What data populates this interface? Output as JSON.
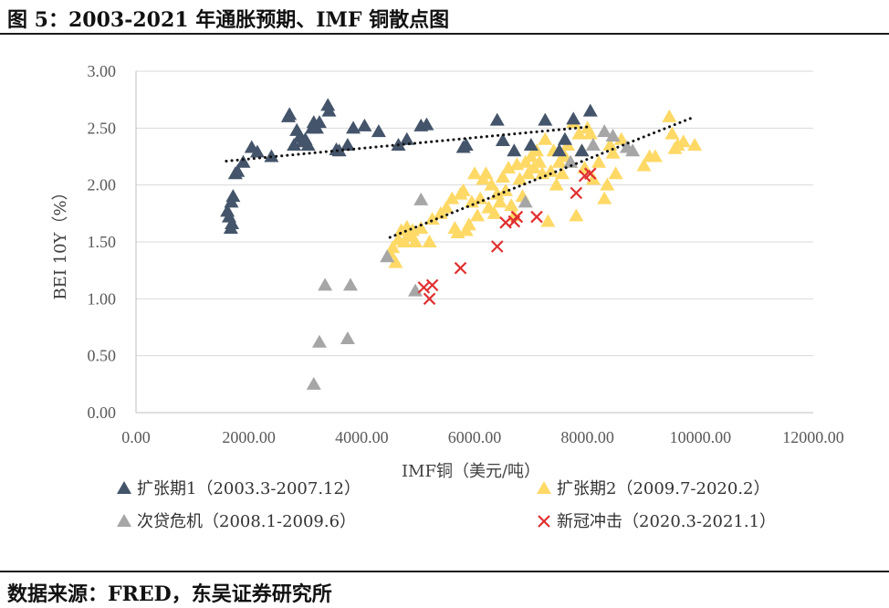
{
  "header": {
    "title": "图 5：2003-2021 年通胀预期、IMF 铜散点图"
  },
  "footer": {
    "source": "数据来源：FRED，东吴证券研究所"
  },
  "chart_data": {
    "type": "scatter",
    "title": "",
    "xlabel": "IMF铜（美元/吨）",
    "ylabel": "BEI 10Y（%）",
    "xlim": [
      0,
      12000
    ],
    "ylim": [
      0,
      3
    ],
    "x_ticks": [
      "0.00",
      "2000.00",
      "4000.00",
      "6000.00",
      "8000.00",
      "10000.00",
      "12000.00"
    ],
    "y_ticks": [
      "0.00",
      "0.50",
      "1.00",
      "1.50",
      "2.00",
      "2.50",
      "3.00"
    ],
    "grid": "horizontal",
    "legend_position": "bottom",
    "series": [
      {
        "name": "扩张期1（2003.3-2007.12）",
        "marker": "triangle",
        "color": "#44546a",
        "points": [
          [
            1620,
            1.77
          ],
          [
            1650,
            1.72
          ],
          [
            1680,
            1.62
          ],
          [
            1700,
            1.66
          ],
          [
            1690,
            1.85
          ],
          [
            1720,
            1.9
          ],
          [
            1760,
            2.1
          ],
          [
            1800,
            2.12
          ],
          [
            1900,
            2.2
          ],
          [
            2050,
            2.33
          ],
          [
            2150,
            2.29
          ],
          [
            2400,
            2.25
          ],
          [
            2700,
            2.6
          ],
          [
            2720,
            2.62
          ],
          [
            2800,
            2.35
          ],
          [
            2850,
            2.48
          ],
          [
            2900,
            2.42
          ],
          [
            2950,
            2.38
          ],
          [
            3000,
            2.4
          ],
          [
            3050,
            2.35
          ],
          [
            3120,
            2.5
          ],
          [
            3150,
            2.55
          ],
          [
            3200,
            2.5
          ],
          [
            3250,
            2.55
          ],
          [
            3400,
            2.7
          ],
          [
            3420,
            2.65
          ],
          [
            3550,
            2.31
          ],
          [
            3600,
            2.3
          ],
          [
            3750,
            2.35
          ],
          [
            3850,
            2.5
          ],
          [
            4050,
            2.52
          ],
          [
            4300,
            2.47
          ],
          [
            4650,
            2.35
          ],
          [
            4800,
            2.4
          ],
          [
            5050,
            2.52
          ],
          [
            5150,
            2.53
          ],
          [
            5800,
            2.33
          ],
          [
            5850,
            2.35
          ],
          [
            6400,
            2.57
          ],
          [
            6500,
            2.39
          ],
          [
            6700,
            2.3
          ],
          [
            7000,
            2.35
          ],
          [
            7250,
            2.57
          ],
          [
            7500,
            2.3
          ],
          [
            7600,
            2.4
          ],
          [
            7750,
            2.58
          ],
          [
            8050,
            2.65
          ],
          [
            7900,
            2.3
          ]
        ]
      },
      {
        "name": "扩张期2（2009.7-2020.2）",
        "marker": "triangle",
        "color": "#ffd966",
        "points": [
          [
            4500,
            1.4
          ],
          [
            4550,
            1.45
          ],
          [
            4600,
            1.32
          ],
          [
            4650,
            1.52
          ],
          [
            4700,
            1.6
          ],
          [
            4750,
            1.5
          ],
          [
            4800,
            1.63
          ],
          [
            4850,
            1.55
          ],
          [
            4900,
            1.6
          ],
          [
            4950,
            1.5
          ],
          [
            5050,
            1.62
          ],
          [
            5200,
            1.5
          ],
          [
            5250,
            1.7
          ],
          [
            5400,
            1.75
          ],
          [
            5500,
            1.8
          ],
          [
            5600,
            1.88
          ],
          [
            5650,
            1.62
          ],
          [
            5700,
            1.58
          ],
          [
            5750,
            1.92
          ],
          [
            5800,
            1.95
          ],
          [
            5850,
            1.6
          ],
          [
            5900,
            1.65
          ],
          [
            5950,
            1.85
          ],
          [
            6000,
            2.1
          ],
          [
            6050,
            1.73
          ],
          [
            6100,
            1.88
          ],
          [
            6150,
            2.05
          ],
          [
            6200,
            2.1
          ],
          [
            6250,
            1.8
          ],
          [
            6300,
            2.0
          ],
          [
            6350,
            1.75
          ],
          [
            6400,
            1.92
          ],
          [
            6450,
            1.85
          ],
          [
            6500,
            2.07
          ],
          [
            6550,
            1.95
          ],
          [
            6600,
            2.15
          ],
          [
            6650,
            1.82
          ],
          [
            6700,
            1.73
          ],
          [
            6750,
            2.18
          ],
          [
            6800,
            2.05
          ],
          [
            6850,
            1.9
          ],
          [
            6900,
            2.2
          ],
          [
            6950,
            2.1
          ],
          [
            7000,
            2.25
          ],
          [
            7050,
            2.15
          ],
          [
            7100,
            2.3
          ],
          [
            7150,
            2.2
          ],
          [
            7200,
            2.1
          ],
          [
            7250,
            2.4
          ],
          [
            7300,
            1.68
          ],
          [
            7350,
            2.12
          ],
          [
            7400,
            2.3
          ],
          [
            7450,
            2.0
          ],
          [
            7500,
            2.2
          ],
          [
            7550,
            2.1
          ],
          [
            7600,
            2.25
          ],
          [
            7650,
            2.35
          ],
          [
            7700,
            2.2
          ],
          [
            7750,
            2.55
          ],
          [
            7800,
            1.73
          ],
          [
            7850,
            2.45
          ],
          [
            7900,
            2.3
          ],
          [
            7950,
            2.15
          ],
          [
            8000,
            2.5
          ],
          [
            8050,
            2.45
          ],
          [
            8100,
            2.05
          ],
          [
            8200,
            2.2
          ],
          [
            8300,
            1.88
          ],
          [
            8350,
            2.0
          ],
          [
            8400,
            2.35
          ],
          [
            8450,
            2.28
          ],
          [
            8500,
            2.1
          ],
          [
            9000,
            2.17
          ],
          [
            9100,
            2.25
          ],
          [
            9200,
            2.25
          ],
          [
            9450,
            2.6
          ],
          [
            9500,
            2.45
          ],
          [
            9550,
            2.32
          ],
          [
            9600,
            2.35
          ],
          [
            9700,
            2.38
          ],
          [
            9900,
            2.35
          ],
          [
            8600,
            2.4
          ]
        ]
      },
      {
        "name": "次贷危机（2008.1-2009.6）",
        "marker": "triangle",
        "color": "#a6a6a6",
        "points": [
          [
            3150,
            0.25
          ],
          [
            3250,
            0.62
          ],
          [
            3350,
            1.12
          ],
          [
            3750,
            0.65
          ],
          [
            3800,
            1.12
          ],
          [
            4450,
            1.37
          ],
          [
            4950,
            1.07
          ],
          [
            5050,
            1.87
          ],
          [
            6900,
            1.85
          ],
          [
            7700,
            2.2
          ],
          [
            8100,
            2.35
          ],
          [
            8300,
            2.47
          ],
          [
            8450,
            2.43
          ],
          [
            8700,
            2.33
          ],
          [
            8800,
            2.3
          ]
        ]
      },
      {
        "name": "新冠冲击（2020.3-2021.1）",
        "marker": "x",
        "color": "#e03030",
        "points": [
          [
            5100,
            1.1
          ],
          [
            5200,
            1.0
          ],
          [
            5250,
            1.12
          ],
          [
            5750,
            1.27
          ],
          [
            6400,
            1.46
          ],
          [
            6550,
            1.67
          ],
          [
            6700,
            1.68
          ],
          [
            6750,
            1.72
          ],
          [
            7100,
            1.72
          ],
          [
            7800,
            1.93
          ],
          [
            7950,
            2.08
          ],
          [
            8050,
            2.1
          ]
        ]
      }
    ],
    "trendlines": [
      {
        "series": "扩张期1（2003.3-2007.12）",
        "from": [
          1600,
          2.21
        ],
        "to": [
          8000,
          2.51
        ]
      },
      {
        "series": "扩张期2（2009.7-2020.2）",
        "from": [
          4500,
          1.54
        ],
        "to": [
          9900,
          2.6
        ]
      }
    ]
  }
}
